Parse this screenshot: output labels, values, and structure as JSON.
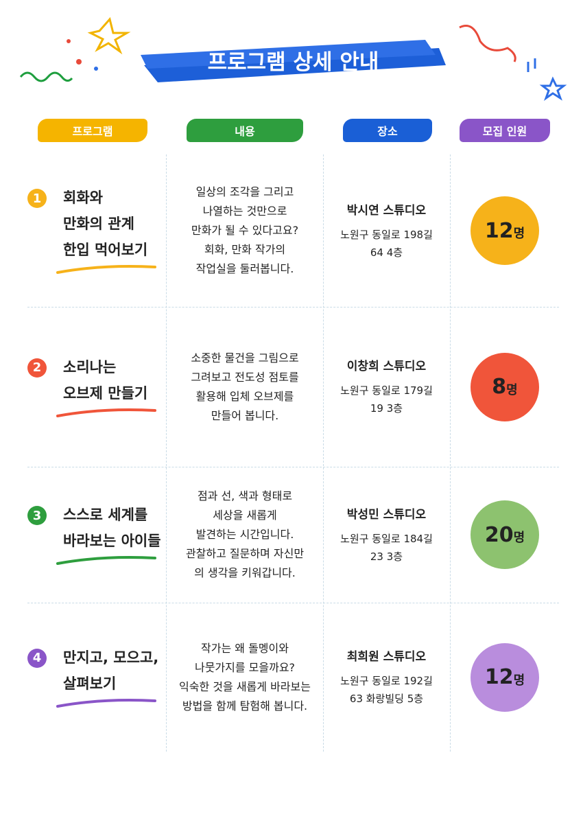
{
  "header": {
    "title": "프로그램 상세 안내"
  },
  "columns": [
    "프로그램",
    "내용",
    "장소",
    "모집 인원"
  ],
  "rows": [
    {
      "number": "1",
      "title": [
        "회화와",
        "만화의 관계",
        "한입 먹어보기"
      ],
      "content": [
        "일상의 조각을 그리고",
        "나열하는 것만으로",
        "만화가 될 수 있다고요?",
        "회화, 만화 작가의",
        "작업실을 둘러봅니다."
      ],
      "studio": "박시연 스튜디오",
      "address": [
        "노원구 동일로 198길",
        "64 4층"
      ],
      "count": "12",
      "unit": "명"
    },
    {
      "number": "2",
      "title": [
        "소리나는",
        "오브제 만들기"
      ],
      "content": [
        "소중한 물건을 그림으로",
        "그려보고 전도성 점토를",
        "활용해 입체 오브제를",
        "만들어 봅니다."
      ],
      "studio": "이창희 스튜디오",
      "address": [
        "노원구 동일로 179길",
        "19 3층"
      ],
      "count": "8",
      "unit": "명"
    },
    {
      "number": "3",
      "title": [
        "스스로 세계를",
        "바라보는 아이들"
      ],
      "content": [
        "점과 선, 색과 형태로",
        "세상을 새롭게",
        "발견하는 시간입니다.",
        "관찰하고 질문하며 자신만",
        "의 생각을 키워갑니다."
      ],
      "studio": "박성민 스튜디오",
      "address": [
        "노원구 동일로 184길",
        "23 3층"
      ],
      "count": "20",
      "unit": "명"
    },
    {
      "number": "4",
      "title": [
        "만지고, 모으고,",
        "살펴보기"
      ],
      "content": [
        "작가는 왜 돌멩이와",
        "나뭇가지를 모을까요?",
        "익숙한 것을 새롭게 바라보는",
        "방법을 함께 탐험해 봅니다."
      ],
      "studio": "최희원 스튜디오",
      "address": [
        "노원구 동일로 192길",
        "63 화랑빌딩 5층"
      ],
      "count": "12",
      "unit": "명"
    }
  ]
}
